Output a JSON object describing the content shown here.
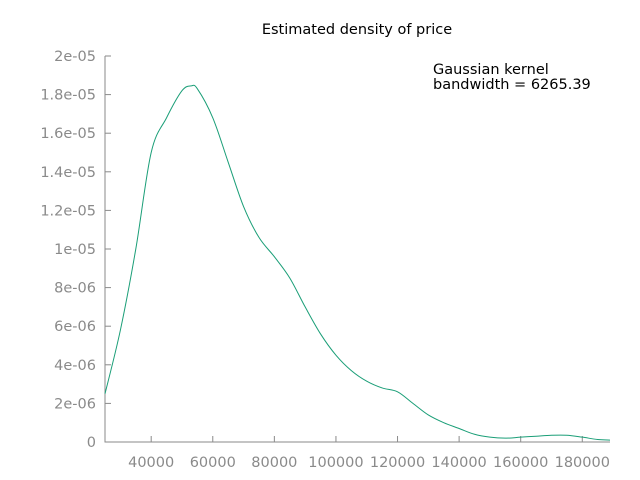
{
  "chart_data": {
    "type": "line",
    "title": "Estimated density of price",
    "xlabel": "",
    "ylabel": "",
    "xlim": [
      25000,
      189000
    ],
    "ylim": [
      0,
      2e-05
    ],
    "grid": false,
    "legend": "none",
    "x_ticks": [
      {
        "value": 40000,
        "label": "40000"
      },
      {
        "value": 60000,
        "label": "60000"
      },
      {
        "value": 80000,
        "label": "80000"
      },
      {
        "value": 100000,
        "label": "100000"
      },
      {
        "value": 120000,
        "label": "120000"
      },
      {
        "value": 140000,
        "label": "140000"
      },
      {
        "value": 160000,
        "label": "160000"
      },
      {
        "value": 180000,
        "label": "180000"
      }
    ],
    "y_ticks": [
      {
        "value": 0,
        "label": "0"
      },
      {
        "value": 2e-06,
        "label": "2e-06"
      },
      {
        "value": 4e-06,
        "label": "4e-06"
      },
      {
        "value": 6e-06,
        "label": "6e-06"
      },
      {
        "value": 8e-06,
        "label": "8e-06"
      },
      {
        "value": 1e-05,
        "label": "1e-05"
      },
      {
        "value": 1.2e-05,
        "label": "1.2e-05"
      },
      {
        "value": 1.4e-05,
        "label": "1.4e-05"
      },
      {
        "value": 1.6e-05,
        "label": "1.6e-05"
      },
      {
        "value": 1.8e-05,
        "label": "1.8e-05"
      },
      {
        "value": 2e-05,
        "label": "2e-05"
      }
    ],
    "annotations": [
      "Gaussian kernel",
      "bandwidth = 6265.39"
    ],
    "series": [
      {
        "color": "#1a9e77",
        "x": [
          25000,
          30000,
          35000,
          40000,
          45000,
          50000,
          53000,
          55000,
          60000,
          65000,
          70000,
          75000,
          80000,
          85000,
          90000,
          95000,
          100000,
          105000,
          110000,
          115000,
          120000,
          125000,
          130000,
          135000,
          140000,
          145000,
          150000,
          155000,
          160000,
          165000,
          170000,
          175000,
          180000,
          185000,
          189000
        ],
        "y": [
          2.5e-06,
          5.8e-06,
          1e-05,
          1.5e-05,
          1.68e-05,
          1.82e-05,
          1.845e-05,
          1.83e-05,
          1.68e-05,
          1.45e-05,
          1.22e-05,
          1.06e-05,
          9.6e-06,
          8.5e-06,
          7e-06,
          5.6e-06,
          4.5e-06,
          3.7e-06,
          3.15e-06,
          2.8e-06,
          2.6e-06,
          2e-06,
          1.4e-06,
          1e-06,
          7e-07,
          4e-07,
          2.5e-07,
          2e-07,
          2.5e-07,
          3e-07,
          3.5e-07,
          3.5e-07,
          2.5e-07,
          1.3e-07,
          1e-07
        ]
      }
    ]
  }
}
